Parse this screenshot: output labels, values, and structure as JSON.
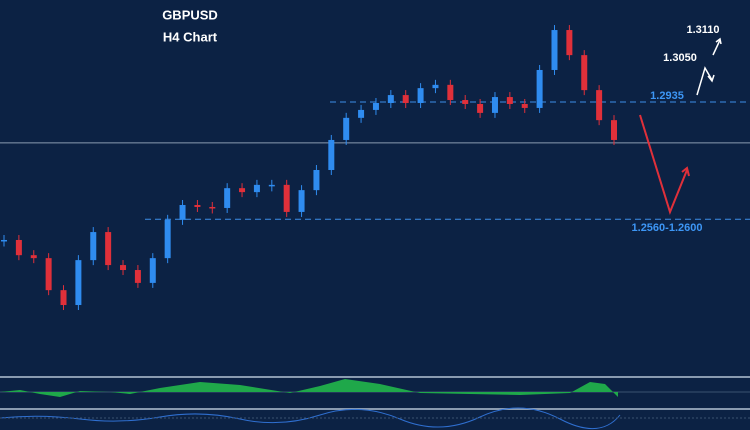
{
  "chart_data": {
    "type": "candlestick",
    "title": "GBPUSD",
    "subtitle": "H4 Chart",
    "values": [
      1.2517,
      1.2471,
      1.2462,
      1.2365,
      1.232,
      1.2456,
      1.2541,
      1.2441,
      1.2426,
      1.2387,
      1.2462,
      1.2578,
      1.2623,
      1.2617,
      1.2614,
      1.2674,
      1.2662,
      1.2684,
      1.2684,
      1.2602,
      1.2668,
      1.2729,
      1.282,
      1.2887,
      1.2911,
      1.2932,
      1.2956,
      1.2932,
      1.2977,
      1.2987,
      1.2941,
      1.2929,
      1.2902,
      1.295,
      1.2929,
      1.2917,
      1.3032,
      1.3153,
      1.3077,
      1.2971,
      1.288,
      1.282
    ],
    "up_color": "#2f8cf0",
    "down_color": "#e0303a",
    "ylim": [
      1.2108,
      1.3244
    ],
    "hlines": [
      1.2935,
      1.258,
      1.2811
    ],
    "annotations": [
      "1.3110",
      "1.3050",
      "1.2935",
      "1.2560-1.2600"
    ]
  }
}
